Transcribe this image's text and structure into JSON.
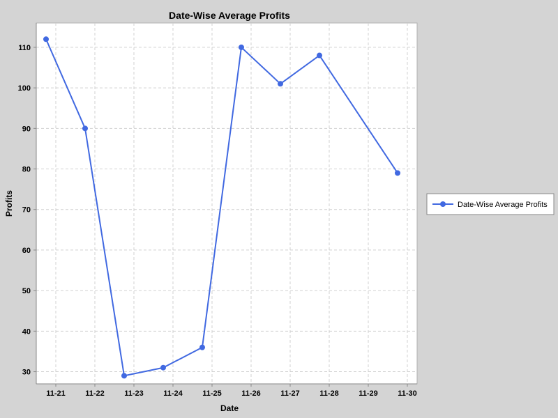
{
  "chart_data": {
    "type": "line",
    "title": "Date-Wise Average Profits",
    "xlabel": "Date",
    "ylabel": "Profits",
    "x_tick_labels": [
      "11-21",
      "11-22",
      "11-23",
      "11-24",
      "11-25",
      "11-26",
      "11-27",
      "11-28",
      "11-29",
      "11-30"
    ],
    "y_ticks": [
      30,
      40,
      50,
      60,
      70,
      80,
      90,
      100,
      110
    ],
    "ylim": [
      27,
      116
    ],
    "xlim": [
      "11-20 12:00",
      "11-30 06:00"
    ],
    "grid": true,
    "legend_position": "right",
    "series": [
      {
        "name": "Date-Wise Average Profits",
        "color": "#4169e1",
        "x": [
          "11-20 18:00",
          "11-21 18:00",
          "11-22 18:00",
          "11-23 18:00",
          "11-24 18:00",
          "11-25 18:00",
          "11-26 18:00",
          "11-27 18:00",
          "11-29 18:00"
        ],
        "values": [
          112,
          90,
          29,
          31,
          36,
          110,
          101,
          108,
          79
        ]
      }
    ]
  }
}
